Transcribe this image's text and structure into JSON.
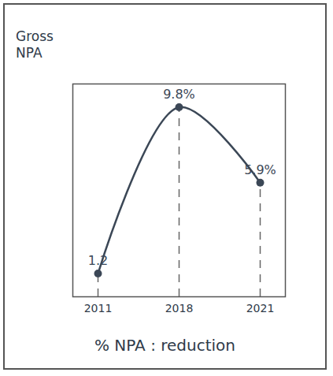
{
  "chart_data": {
    "type": "line",
    "ylabel": "Gross NPA",
    "caption": "% NPA : reduction",
    "categories": [
      "2011",
      "2018",
      "2021"
    ],
    "values": [
      1.2,
      9.8,
      5.9
    ],
    "value_labels": [
      "1.2",
      "9.8%",
      "5.9%"
    ],
    "data_labels": true,
    "ylim": [
      0,
      11
    ],
    "tick_labels": "x",
    "color": "#3b4756",
    "marker": "circle",
    "line_style": "solid"
  }
}
